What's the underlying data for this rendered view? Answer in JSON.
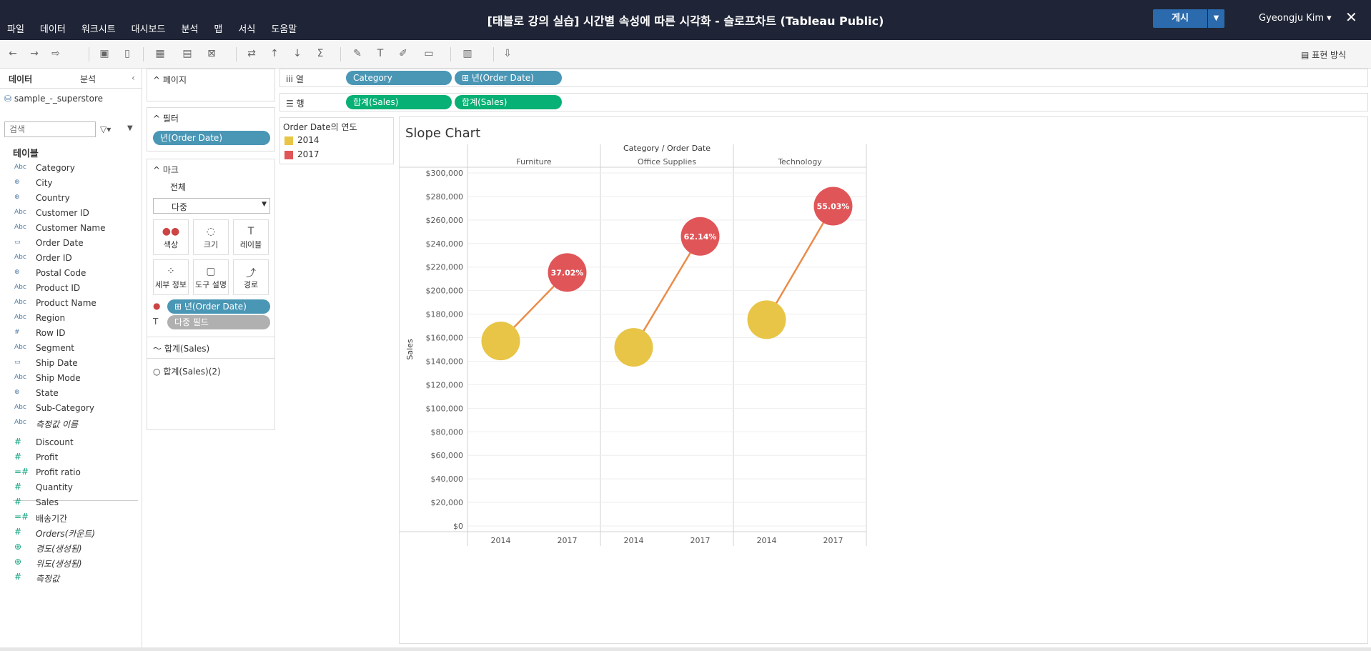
{
  "window": {
    "title": "[태블로 강의 실습] 시간별 속성에 따른 시각화 - 슬로프차트 (Tableau Public)"
  },
  "menu": [
    "파일",
    "데이터",
    "워크시트",
    "대시보드",
    "분석",
    "맵",
    "서식",
    "도움말"
  ],
  "publish": {
    "label": "게시"
  },
  "user": {
    "name": "Gyeongju Kim ▾"
  },
  "toolbar": {
    "show_me": "표현 방식"
  },
  "data_pane": {
    "tab_data": "데이터",
    "tab_analysis": "분석",
    "datasource": "sample_-_superstore",
    "search_placeholder": "검색",
    "tables_title": "테이블",
    "dimensions": [
      {
        "icon": "Abc",
        "name": "Category"
      },
      {
        "icon": "⊕",
        "name": "City"
      },
      {
        "icon": "⊕",
        "name": "Country"
      },
      {
        "icon": "Abc",
        "name": "Customer ID"
      },
      {
        "icon": "Abc",
        "name": "Customer Name"
      },
      {
        "icon": "▭",
        "name": "Order Date"
      },
      {
        "icon": "Abc",
        "name": "Order ID"
      },
      {
        "icon": "⊕",
        "name": "Postal Code"
      },
      {
        "icon": "Abc",
        "name": "Product ID"
      },
      {
        "icon": "Abc",
        "name": "Product Name"
      },
      {
        "icon": "Abc",
        "name": "Region"
      },
      {
        "icon": "#",
        "name": "Row ID"
      },
      {
        "icon": "Abc",
        "name": "Segment"
      },
      {
        "icon": "▭",
        "name": "Ship Date"
      },
      {
        "icon": "Abc",
        "name": "Ship Mode"
      },
      {
        "icon": "⊕",
        "name": "State"
      },
      {
        "icon": "Abc",
        "name": "Sub-Category"
      },
      {
        "icon": "Abc",
        "name": "측정값 이름"
      }
    ],
    "measures": [
      {
        "icon": "#",
        "name": "Discount"
      },
      {
        "icon": "#",
        "name": "Profit"
      },
      {
        "icon": "=#",
        "name": "Profit ratio"
      },
      {
        "icon": "#",
        "name": "Quantity"
      },
      {
        "icon": "#",
        "name": "Sales"
      },
      {
        "icon": "=#",
        "name": "배송기간"
      },
      {
        "icon": "#",
        "name": "Orders(카운트)"
      },
      {
        "icon": "⊕",
        "name": "경도(생성됨)"
      },
      {
        "icon": "⊕",
        "name": "위도(생성됨)"
      },
      {
        "icon": "#",
        "name": "측정값"
      }
    ]
  },
  "cards": {
    "pages": "페이지",
    "filters": "필터",
    "filter_pill": "년(Order Date)",
    "marks": "마크",
    "marks_all": "전체",
    "marks_type": "다중",
    "mark_buttons": [
      "색상",
      "크기",
      "레이블",
      "세부 정보",
      "도구 설명",
      "경로"
    ],
    "color_pill": "년(Order Date)",
    "label_pill": "다중 필드",
    "marks_line": "합계(Sales)",
    "marks_circle": "합계(Sales)(2)"
  },
  "shelves": {
    "columns_label": "열",
    "rows_label": "행",
    "columns": [
      "Category",
      "년(Order Date)"
    ],
    "rows": [
      "합계(Sales)",
      "합계(Sales)"
    ]
  },
  "legend": {
    "title": "Order Date의 연도",
    "items": [
      {
        "label": "2014",
        "color": "#e8c547"
      },
      {
        "label": "2017",
        "color": "#e05558"
      }
    ]
  },
  "chart_data": {
    "type": "line",
    "title": "Slope Chart",
    "header": "Category / Order Date",
    "ylabel": "Sales",
    "ylim": [
      0,
      300000
    ],
    "y_ticks": [
      "$0",
      "$20,000",
      "$40,000",
      "$60,000",
      "$80,000",
      "$100,000",
      "$120,000",
      "$140,000",
      "$160,000",
      "$180,000",
      "$200,000",
      "$220,000",
      "$240,000",
      "$260,000",
      "$280,000",
      "$300,000"
    ],
    "x_categories": [
      "2014",
      "2017"
    ],
    "panels": [
      {
        "category": "Furniture",
        "values": [
          157193,
          215387
        ],
        "label": "37.02%"
      },
      {
        "category": "Office Supplies",
        "values": [
          151776,
          246097
        ],
        "label": "62.14%"
      },
      {
        "category": "Technology",
        "values": [
          175278,
          271731
        ],
        "label": "55.03%"
      }
    ],
    "colors": {
      "start": "#e8c547",
      "end": "#e05558",
      "line": "#eb8c4a"
    }
  }
}
